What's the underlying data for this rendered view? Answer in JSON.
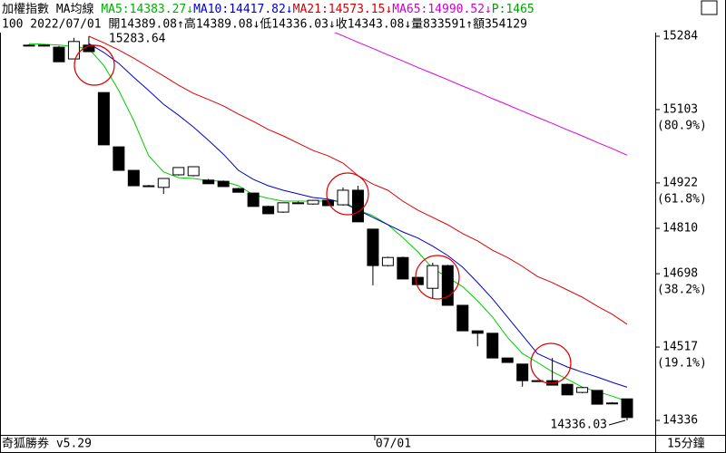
{
  "chart_data": {
    "type": "candlestick",
    "header": {
      "line1": [
        {
          "text": "加權指數 MA均線 ",
          "color": "#000000"
        },
        {
          "text": "MA5:14383.27↓",
          "color": "#00b000"
        },
        {
          "text": "MA10:14417.82↓",
          "color": "#0000cc"
        },
        {
          "text": "MA21:14573.15↓",
          "color": "#d00000"
        },
        {
          "text": "MA65:14990.52↓",
          "color": "#cc00cc"
        },
        {
          "text": "P:1465",
          "color": "#00a000"
        }
      ],
      "line2": "100 2022/07/01 開14389.08↑高14389.08↓低14336.03↓收14343.08↓量833591↑額354129"
    },
    "footer_left": "奇狐勝券 v5.29",
    "footer_right": "15分鐘",
    "categories": [
      null,
      null,
      null,
      null,
      null,
      null,
      null,
      null,
      null,
      null,
      null,
      null,
      null,
      null,
      null,
      null,
      null,
      null,
      null,
      null,
      null,
      null,
      null,
      "07/01",
      null,
      null,
      null,
      null,
      null,
      null,
      null,
      null,
      null,
      null,
      null,
      null,
      null,
      null,
      null,
      null,
      null
    ],
    "open": [
      15262,
      15262,
      15257,
      15228,
      15262,
      15145,
      15011,
      14953,
      14915,
      14911,
      14942,
      14940,
      14929,
      14926,
      14908,
      14897,
      14864,
      14850,
      14873,
      14870,
      14879,
      14868,
      14904,
      14808,
      14718,
      14738,
      14689,
      14662,
      14718,
      14620,
      14557,
      14551,
      14490,
      14475,
      14434,
      14434,
      14425,
      14405,
      14410,
      14379,
      14389.08
    ],
    "high": [
      15264,
      15264,
      15260,
      15280,
      15283.64,
      15145,
      15011,
      14953,
      14917,
      14933,
      14960,
      14963,
      14932,
      14928,
      14910,
      14897,
      14866,
      14873,
      14876,
      14880,
      14881,
      14911,
      14915,
      14808,
      14740,
      14740,
      14690,
      14725,
      14720,
      14620,
      14557,
      14551,
      14490,
      14475,
      14436,
      14490,
      14427,
      14418,
      14411,
      14381,
      14389.08
    ],
    "low": [
      15259,
      15260,
      15221,
      15228,
      15246,
      15016,
      14953,
      14915,
      14913,
      14895,
      14940,
      14938,
      14920,
      14913,
      14899,
      14864,
      14846,
      14848,
      14870,
      14868,
      14866,
      14866,
      14826,
      14669,
      14716,
      14685,
      14671,
      14636,
      14620,
      14557,
      14519,
      14490,
      14479,
      14419,
      14432,
      14423,
      14399,
      14403,
      14376,
      14376,
      14336.03
    ],
    "close": [
      15262,
      15262,
      15221,
      15271,
      15246,
      15016,
      14953,
      14915,
      14914,
      14933,
      14960,
      14962,
      14920,
      14913,
      14899,
      14864,
      14846,
      14873,
      14873,
      14879,
      14866,
      14904,
      14826,
      14718,
      14738,
      14685,
      14671,
      14718,
      14620,
      14557,
      14551,
      14490,
      14479,
      14434,
      14434,
      14423,
      14399,
      14417,
      14376,
      14379,
      14343.08
    ],
    "up_color": "#ffffff",
    "down_color": "#000000",
    "series": [
      {
        "name": "MA5",
        "color": "#00cc00",
        "values": [
          15266,
          15264,
          15262,
          15259,
          15253,
          15212,
          15150,
          15076,
          14989,
          14949,
          14935,
          14933,
          14928,
          14926,
          14915,
          14893,
          14884,
          14877,
          14877,
          14877,
          14877,
          14877,
          14855,
          14841,
          14819,
          14787,
          14752,
          14711,
          14689,
          14666,
          14631,
          14591,
          14541,
          14501,
          14479,
          14456,
          14438,
          14418,
          14407,
          14396,
          14383.27
        ]
      },
      {
        "name": "MA10",
        "color": "#0000cc",
        "values": [
          null,
          null,
          null,
          null,
          15266,
          15244,
          15217,
          15183,
          15150,
          15116,
          15089,
          15060,
          15027,
          14993,
          14953,
          14931,
          14915,
          14904,
          14895,
          14886,
          14882,
          14873,
          14855,
          14837,
          14819,
          14801,
          14786,
          14766,
          14743,
          14714,
          14676,
          14636,
          14591,
          14546,
          14501,
          14484,
          14468,
          14455,
          14443,
          14430,
          14417.82
        ]
      },
      {
        "name": "MA21",
        "color": "#dd0000",
        "values": [
          null,
          null,
          null,
          null,
          15284,
          15268,
          15250,
          15230,
          15208,
          15186,
          15163,
          15143,
          15128,
          15112,
          15092,
          15074,
          15054,
          15038,
          15020,
          15002,
          14989,
          14971,
          14940,
          14919,
          14904,
          14877,
          14855,
          14837,
          14819,
          14797,
          14779,
          14756,
          14738,
          14716,
          14691,
          14676,
          14658,
          14640,
          14618,
          14598,
          14573.15
        ]
      },
      {
        "name": "MA65",
        "color": "#dd00dd",
        "values": [
          null,
          null,
          null,
          null,
          null,
          null,
          null,
          null,
          null,
          null,
          null,
          null,
          null,
          null,
          null,
          null,
          null,
          null,
          null,
          null,
          15300,
          15285,
          15269,
          15254,
          15238,
          15223,
          15207,
          15192,
          15177,
          15161,
          15146,
          15130,
          15115,
          15099,
          15084,
          15069,
          15053,
          15038,
          15022,
          15007,
          14990.52
        ]
      }
    ],
    "ylim": [
      14336,
      15284
    ],
    "yticks": [
      15284,
      15103,
      14922,
      14810,
      14698,
      14517,
      14336
    ],
    "fib_labels": [
      {
        "value": 15103,
        "label": "(80.9%)"
      },
      {
        "value": 14922,
        "label": "(61.8%)"
      },
      {
        "value": 14698,
        "label": "(38.2%)"
      },
      {
        "value": 14517,
        "label": "(19.1%)"
      }
    ],
    "annotations": [
      {
        "index": 4,
        "text": "15283.64"
      },
      {
        "index": 40,
        "text": "14336.03"
      }
    ]
  }
}
